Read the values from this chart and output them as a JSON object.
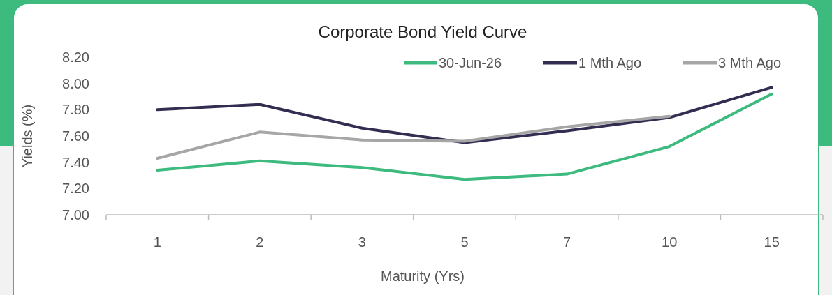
{
  "chart_data": {
    "type": "line",
    "title": "Corporate Bond Yield Curve",
    "xlabel": "Maturity (Yrs)",
    "ylabel": "Yields (%)",
    "categories": [
      "1",
      "2",
      "3",
      "5",
      "7",
      "10",
      "15"
    ],
    "series": [
      {
        "name": "30-Jun-26",
        "color": "#3dba7e",
        "values": [
          7.34,
          7.41,
          7.36,
          7.27,
          7.31,
          7.52,
          7.92
        ]
      },
      {
        "name": "1 Mth Ago",
        "color": "#332d51",
        "values": [
          7.8,
          7.84,
          7.66,
          7.55,
          7.64,
          7.74,
          7.97
        ]
      },
      {
        "name": "3 Mth Ago",
        "color": "#a6a6a6",
        "values": [
          7.43,
          7.63,
          7.57,
          7.56,
          7.67,
          7.75,
          null
        ]
      }
    ],
    "ylim": [
      7,
      8.2
    ],
    "yticks": [
      {
        "value": 7,
        "label": "7.00"
      },
      {
        "value": 7.2,
        "label": "7.20"
      },
      {
        "value": 7.4,
        "label": "7.40"
      },
      {
        "value": 7.6,
        "label": "7.60"
      },
      {
        "value": 7.8,
        "label": "7.80"
      },
      {
        "value": 8,
        "label": "8.00"
      },
      {
        "value": 8.2,
        "label": "8.20"
      }
    ],
    "grid": false,
    "legend": "top right",
    "marker": "none",
    "line_style": "solid"
  }
}
